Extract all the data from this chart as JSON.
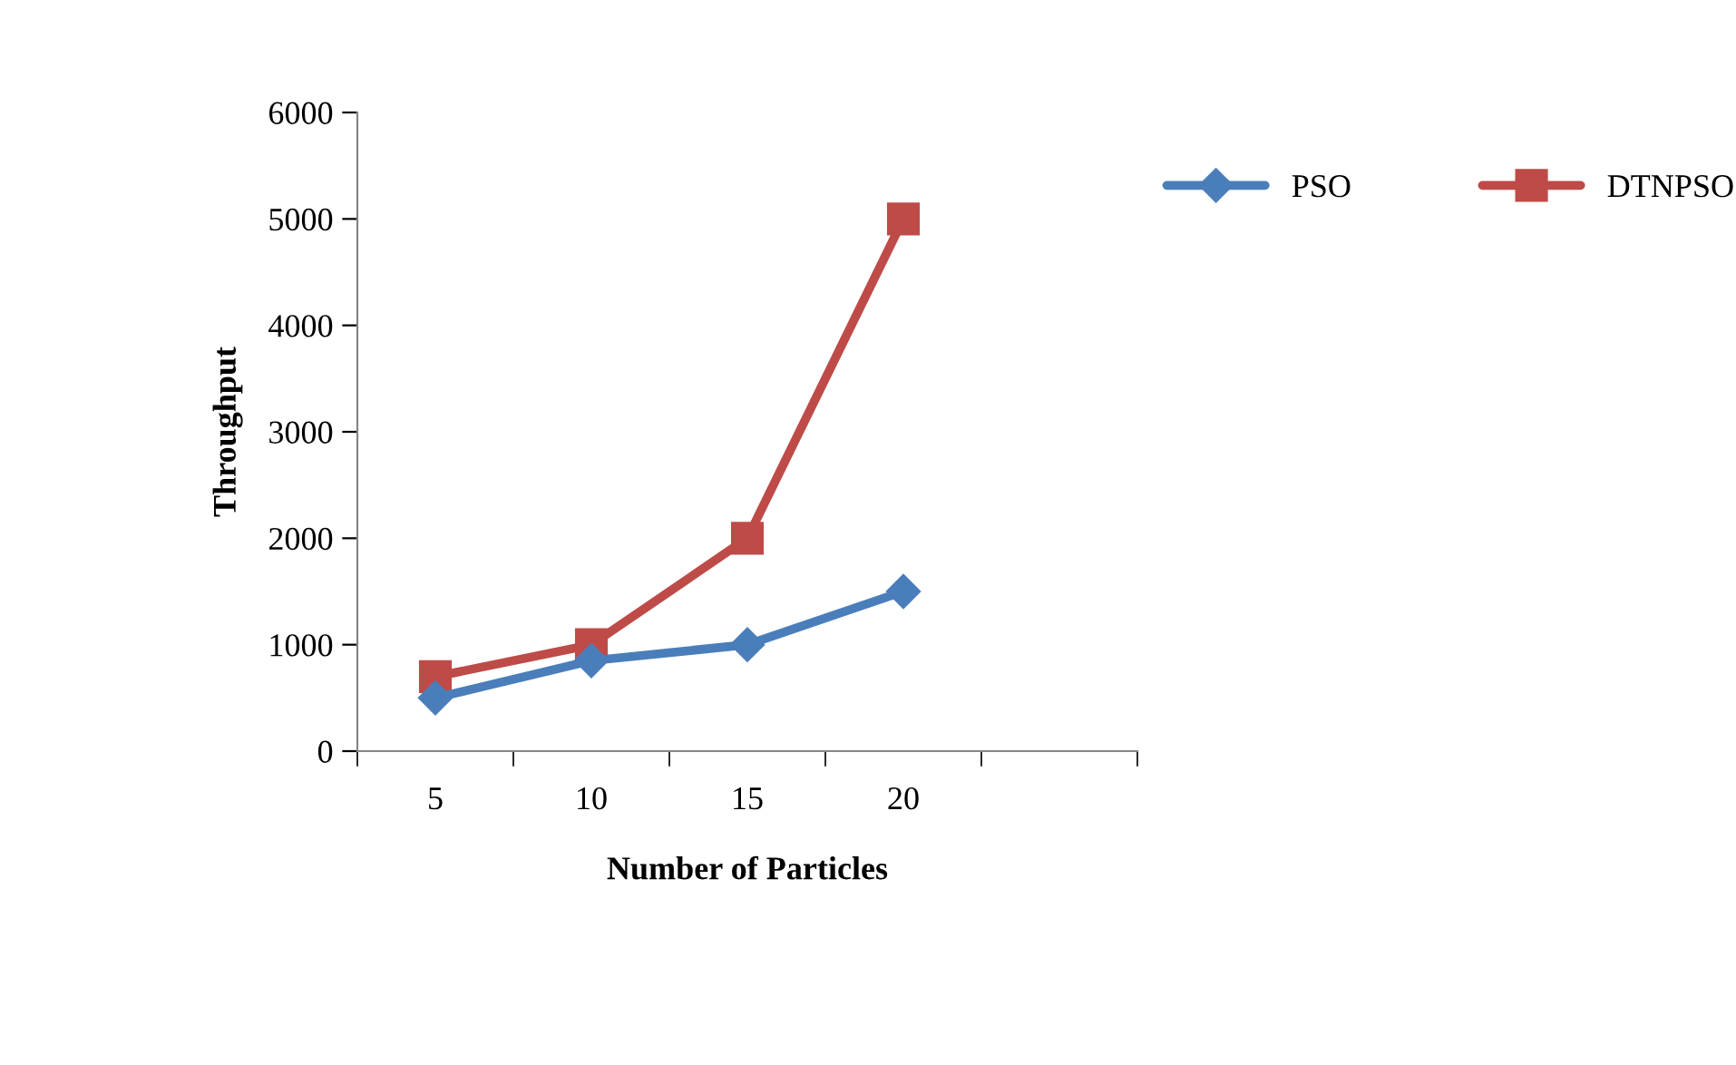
{
  "chart_data": {
    "type": "line",
    "xlabel": "Number of Particles",
    "ylabel": "Throughput",
    "categories": [
      "5",
      "10",
      "15",
      "20",
      null
    ],
    "series": [
      {
        "name": "PSO",
        "color": "#4a7ebb",
        "marker": "diamond",
        "values": [
          500,
          850,
          1000,
          1500,
          null
        ]
      },
      {
        "name": "DTNPSO",
        "color": "#be4b48",
        "marker": "square",
        "values": [
          700,
          1000,
          2000,
          5000,
          null
        ]
      }
    ],
    "ylim": [
      0,
      6000
    ],
    "yticks": [
      0,
      1000,
      2000,
      3000,
      4000,
      5000,
      6000
    ],
    "grid": false,
    "legend": "top right",
    "line_style": "solid"
  }
}
